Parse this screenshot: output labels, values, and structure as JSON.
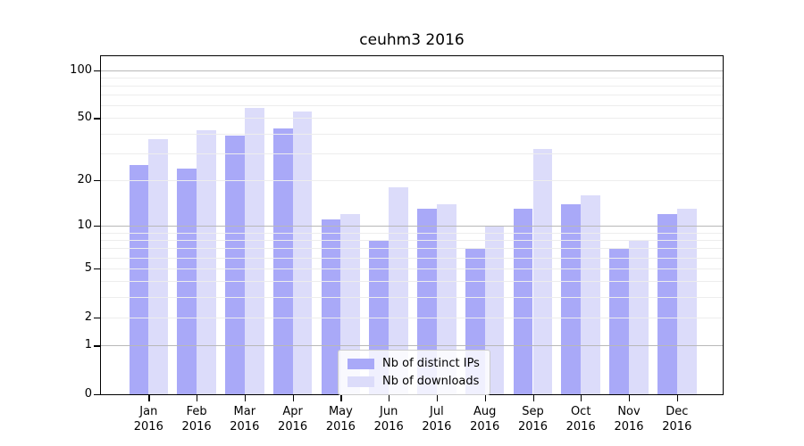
{
  "title": "ceuhm3 2016",
  "legend": {
    "items": [
      {
        "label": "Nb of distinct IPs",
        "series": "ips"
      },
      {
        "label": "Nb of downloads",
        "series": "downloads"
      }
    ]
  },
  "colors": {
    "ips_bar": "#a9a9f8",
    "downloads_bar": "#dcdcfa",
    "grid_major": "#b8b8b8",
    "grid_minor": "#ededed",
    "spine": "#000000",
    "legend_border": "#cccccc"
  },
  "y_axis": {
    "ticks": [
      {
        "value": 100,
        "label": "100"
      },
      {
        "value": 50,
        "label": "50"
      },
      {
        "value": 20,
        "label": "20"
      },
      {
        "value": 10,
        "label": "10"
      },
      {
        "value": 5,
        "label": "5"
      },
      {
        "value": 2,
        "label": "2"
      },
      {
        "value": 1,
        "label": "1"
      },
      {
        "value": 0,
        "label": "0"
      }
    ],
    "major_gridlines": [
      1,
      10,
      100
    ],
    "minor_gridlines": [
      2,
      3,
      4,
      5,
      6,
      7,
      8,
      9,
      20,
      30,
      40,
      50,
      60,
      70,
      80,
      90
    ]
  },
  "x_axis": {
    "categories": [
      {
        "month": "Jan",
        "year": "2016"
      },
      {
        "month": "Feb",
        "year": "2016"
      },
      {
        "month": "Mar",
        "year": "2016"
      },
      {
        "month": "Apr",
        "year": "2016"
      },
      {
        "month": "May",
        "year": "2016"
      },
      {
        "month": "Jun",
        "year": "2016"
      },
      {
        "month": "Jul",
        "year": "2016"
      },
      {
        "month": "Aug",
        "year": "2016"
      },
      {
        "month": "Sep",
        "year": "2016"
      },
      {
        "month": "Oct",
        "year": "2016"
      },
      {
        "month": "Nov",
        "year": "2016"
      },
      {
        "month": "Dec",
        "year": "2016"
      }
    ]
  },
  "chart_data": {
    "type": "bar",
    "title": "ceuhm3 2016",
    "categories": [
      "Jan 2016",
      "Feb 2016",
      "Mar 2016",
      "Apr 2016",
      "May 2016",
      "Jun 2016",
      "Jul 2016",
      "Aug 2016",
      "Sep 2016",
      "Oct 2016",
      "Nov 2016",
      "Dec 2016"
    ],
    "series": [
      {
        "name": "Nb of distinct IPs",
        "values": [
          25,
          24,
          39,
          43,
          11,
          8,
          13,
          7,
          13,
          14,
          7,
          12
        ]
      },
      {
        "name": "Nb of downloads",
        "values": [
          37,
          42,
          58,
          55,
          12,
          18,
          14,
          10,
          32,
          16,
          8,
          13
        ]
      }
    ],
    "yscale": "log(1+y)",
    "yticks": [
      0,
      1,
      2,
      5,
      10,
      20,
      50,
      100
    ],
    "ylim": [
      0,
      122
    ],
    "xlabel": "",
    "ylabel": "",
    "grid": "on",
    "legend_position": "inside lower center"
  }
}
